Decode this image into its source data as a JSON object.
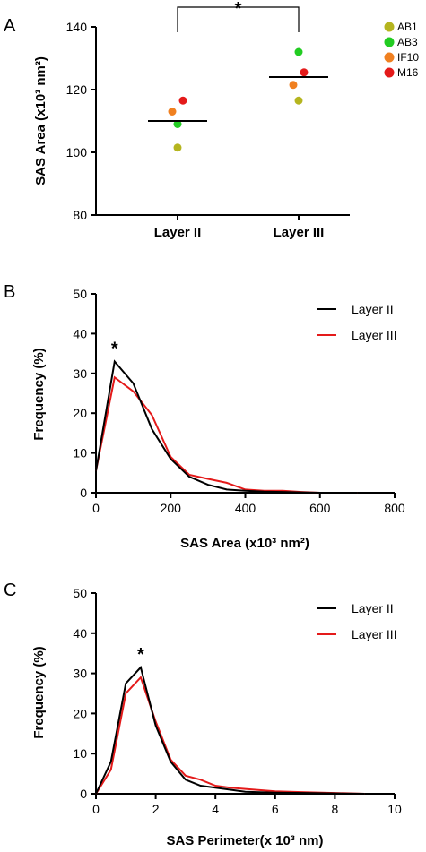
{
  "chart_data": [
    {
      "type": "scatter",
      "panel": "A",
      "ylabel": "SAS Area (x10³ nm²)",
      "ylim": [
        80,
        140
      ],
      "yticks": [
        "80",
        "100",
        "120",
        "140"
      ],
      "categories": [
        "Layer II",
        "Layer III"
      ],
      "series": [
        {
          "name": "AB1",
          "color": "#b5b51f",
          "values": [
            101.5,
            116.5
          ]
        },
        {
          "name": "AB3",
          "color": "#22cc22",
          "values": [
            109,
            132
          ]
        },
        {
          "name": "IF10",
          "color": "#f08020",
          "values": [
            113,
            121.5
          ]
        },
        {
          "name": "M16",
          "color": "#e41a1a",
          "values": [
            116.5,
            125.5
          ]
        }
      ],
      "means": [
        110,
        124
      ],
      "significance": "*",
      "legend_position": "top-right"
    },
    {
      "type": "line",
      "panel": "B",
      "xlabel": "SAS Area (x10³ nm²)",
      "ylabel": "Frequency (%)",
      "xlim": [
        0,
        800
      ],
      "ylim": [
        0,
        50
      ],
      "xticks": [
        "0",
        "200",
        "400",
        "600",
        "800"
      ],
      "yticks": [
        "0",
        "10",
        "20",
        "30",
        "40",
        "50"
      ],
      "series": [
        {
          "name": "Layer II",
          "color": "#000000",
          "x": [
            0,
            50,
            100,
            150,
            200,
            250,
            300,
            350,
            400,
            450,
            500,
            550,
            600,
            650,
            700
          ],
          "y": [
            5.5,
            33,
            27.5,
            16,
            8.5,
            4,
            2,
            0.8,
            0.5,
            0.3,
            0.2,
            0.1,
            0,
            0,
            0
          ]
        },
        {
          "name": "Layer III",
          "color": "#e41a1a",
          "x": [
            0,
            50,
            100,
            150,
            200,
            250,
            300,
            350,
            400,
            450,
            500,
            550,
            600,
            650,
            700
          ],
          "y": [
            5.5,
            29,
            25.5,
            19.5,
            9,
            4.5,
            3.5,
            2.5,
            0.8,
            0.5,
            0.5,
            0.2,
            0,
            0,
            0
          ]
        }
      ],
      "significance": "*",
      "legend_position": "top-right"
    },
    {
      "type": "line",
      "panel": "C",
      "xlabel": "SAS Perimeter(x 10³ nm)",
      "ylabel": "Frequency (%)",
      "xlim": [
        0,
        10
      ],
      "ylim": [
        0,
        50
      ],
      "xticks": [
        "0",
        "2",
        "4",
        "6",
        "8",
        "10"
      ],
      "yticks": [
        "0",
        "10",
        "20",
        "30",
        "40",
        "50"
      ],
      "series": [
        {
          "name": "Layer II",
          "color": "#000000",
          "x": [
            0,
            0.5,
            1,
            1.5,
            2,
            2.5,
            3,
            3.5,
            4,
            4.5,
            5,
            6,
            7,
            8,
            9
          ],
          "y": [
            0,
            8,
            27.5,
            31.5,
            17,
            8,
            3.5,
            2,
            1.5,
            1,
            0.5,
            0.3,
            0.2,
            0.1,
            0
          ]
        },
        {
          "name": "Layer III",
          "color": "#e41a1a",
          "x": [
            0,
            0.5,
            1,
            1.5,
            2,
            2.5,
            3,
            3.5,
            4,
            4.5,
            5,
            6,
            7,
            8,
            9
          ],
          "y": [
            0,
            6,
            25,
            29,
            18,
            8.5,
            4.5,
            3.5,
            2,
            1.5,
            1.2,
            0.6,
            0.4,
            0.2,
            0
          ]
        }
      ],
      "significance": "*",
      "legend_position": "top-right"
    }
  ]
}
